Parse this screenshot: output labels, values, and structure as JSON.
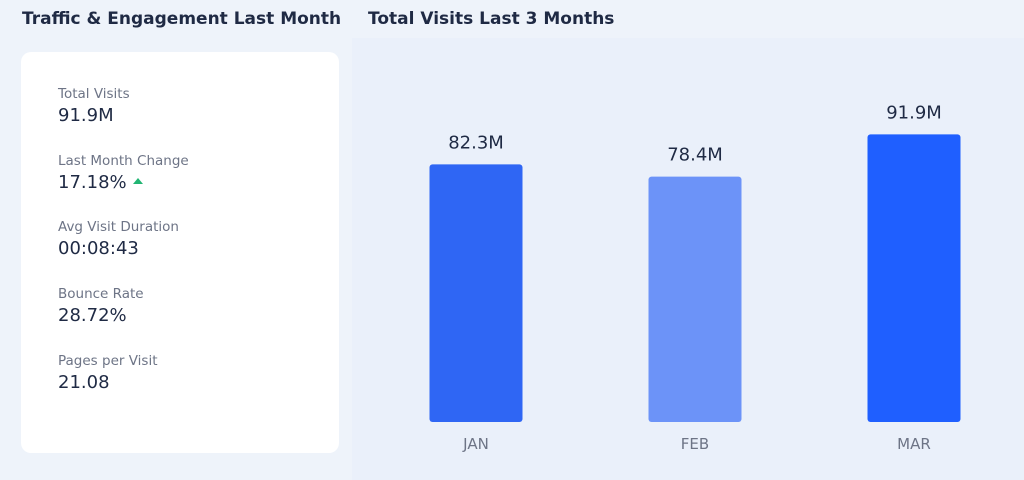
{
  "left_panel": {
    "title": "Traffic & Engagement Last Month",
    "metrics": [
      {
        "label": "Total Visits",
        "value": "91.9M"
      },
      {
        "label": "Last Month Change",
        "value": "17.18%",
        "trend": "up"
      },
      {
        "label": "Avg Visit Duration",
        "value": "00:08:43"
      },
      {
        "label": "Bounce Rate",
        "value": "28.72%"
      },
      {
        "label": "Pages per Visit",
        "value": "21.08"
      }
    ]
  },
  "colors": {
    "accent": "#1f5fff",
    "bar_jan": "#2f66f4",
    "bar_feb": "#6c93f8",
    "bar_mar": "#1f5fff",
    "trend_up": "#22b573"
  },
  "chart_data": {
    "type": "bar",
    "title": "Total Visits Last 3 Months",
    "categories": [
      "JAN",
      "FEB",
      "MAR"
    ],
    "values": [
      82.3,
      78.4,
      91.9
    ],
    "value_labels": [
      "82.3M",
      "78.4M",
      "91.9M"
    ],
    "unit": "M",
    "ylim": [
      0,
      100
    ],
    "grid": false,
    "legend": "none"
  }
}
